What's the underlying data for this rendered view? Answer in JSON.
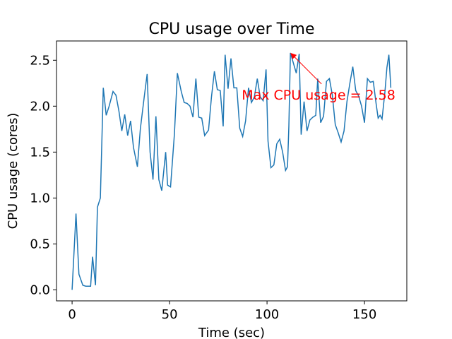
{
  "chart_data": {
    "type": "line",
    "title": "CPU usage over Time",
    "x_label": "Time (sec)",
    "y_label": "CPU usage (cores)",
    "color": "#1f77b4",
    "x": [
      0,
      2,
      3.5,
      5.5,
      7,
      9.5,
      10.5,
      12,
      13,
      14.5,
      16,
      17.5,
      19,
      21,
      22.5,
      24,
      25.5,
      27,
      28.5,
      30,
      31.5,
      33.5,
      35,
      37,
      38.5,
      40,
      41.5,
      43,
      44.5,
      46,
      48,
      49,
      50.5,
      52.5,
      54,
      56,
      57.5,
      59,
      60.5,
      62,
      63.5,
      65,
      66.5,
      68,
      70,
      71.5,
      73,
      74.5,
      76,
      77.5,
      78.5,
      80,
      81.5,
      83,
      84.5,
      86,
      87.5,
      89,
      90.5,
      92,
      93.5,
      95,
      96.5,
      98,
      99.5,
      100.5,
      102,
      103.5,
      105,
      106.5,
      108,
      109.5,
      110.5,
      111.2,
      112,
      115,
      116.5,
      117.5,
      119,
      120.5,
      122,
      123.5,
      125,
      126,
      127.5,
      129,
      130.5,
      132,
      133.5,
      135,
      136.5,
      138,
      139.5,
      141,
      142.5,
      144,
      145.5,
      147,
      148.5,
      150,
      151.5,
      153,
      154.5,
      156,
      157,
      158,
      159,
      160.5,
      161.5,
      162.5,
      163.5
    ],
    "values": [
      0.0,
      0.83,
      0.17,
      0.05,
      0.04,
      0.04,
      0.36,
      0.05,
      0.9,
      1.0,
      2.2,
      1.9,
      2.0,
      2.16,
      2.12,
      1.95,
      1.73,
      1.91,
      1.68,
      1.84,
      1.55,
      1.34,
      1.75,
      2.1,
      2.35,
      1.5,
      1.2,
      1.89,
      1.2,
      1.08,
      1.5,
      1.14,
      1.12,
      1.7,
      2.36,
      2.16,
      2.04,
      2.03,
      2.0,
      1.88,
      2.3,
      1.88,
      1.87,
      1.68,
      1.74,
      2.1,
      2.38,
      2.18,
      2.17,
      1.78,
      2.56,
      2.19,
      2.52,
      2.2,
      2.2,
      1.76,
      1.67,
      1.84,
      2.2,
      2.04,
      2.1,
      2.3,
      2.1,
      2.06,
      2.4,
      1.62,
      1.33,
      1.36,
      1.59,
      1.64,
      1.5,
      1.3,
      1.34,
      1.78,
      2.58,
      2.36,
      2.57,
      1.69,
      2.05,
      1.73,
      1.85,
      1.88,
      1.9,
      2.3,
      1.82,
      1.89,
      2.27,
      2.3,
      2.12,
      1.8,
      1.71,
      1.61,
      1.73,
      2.05,
      2.25,
      2.43,
      2.17,
      2.11,
      2.0,
      1.82,
      2.3,
      2.26,
      2.27,
      2.02,
      1.87,
      1.9,
      1.86,
      2.16,
      2.42,
      2.56,
      2.2
    ],
    "xlim": [
      -8,
      171.7
    ],
    "ylim": [
      -0.12,
      2.71
    ],
    "xticks": [
      0,
      50,
      100,
      150
    ],
    "yticks": [
      {
        "value": 0,
        "label": "0.0"
      },
      0.5,
      {
        "value": 1,
        "label": "1.0"
      },
      1.5,
      {
        "value": 2,
        "label": "2.0"
      },
      2.5
    ],
    "annotation": {
      "text": "Max CPU usage = 2.58",
      "x": 112,
      "y": 2.58,
      "color": "red"
    }
  }
}
